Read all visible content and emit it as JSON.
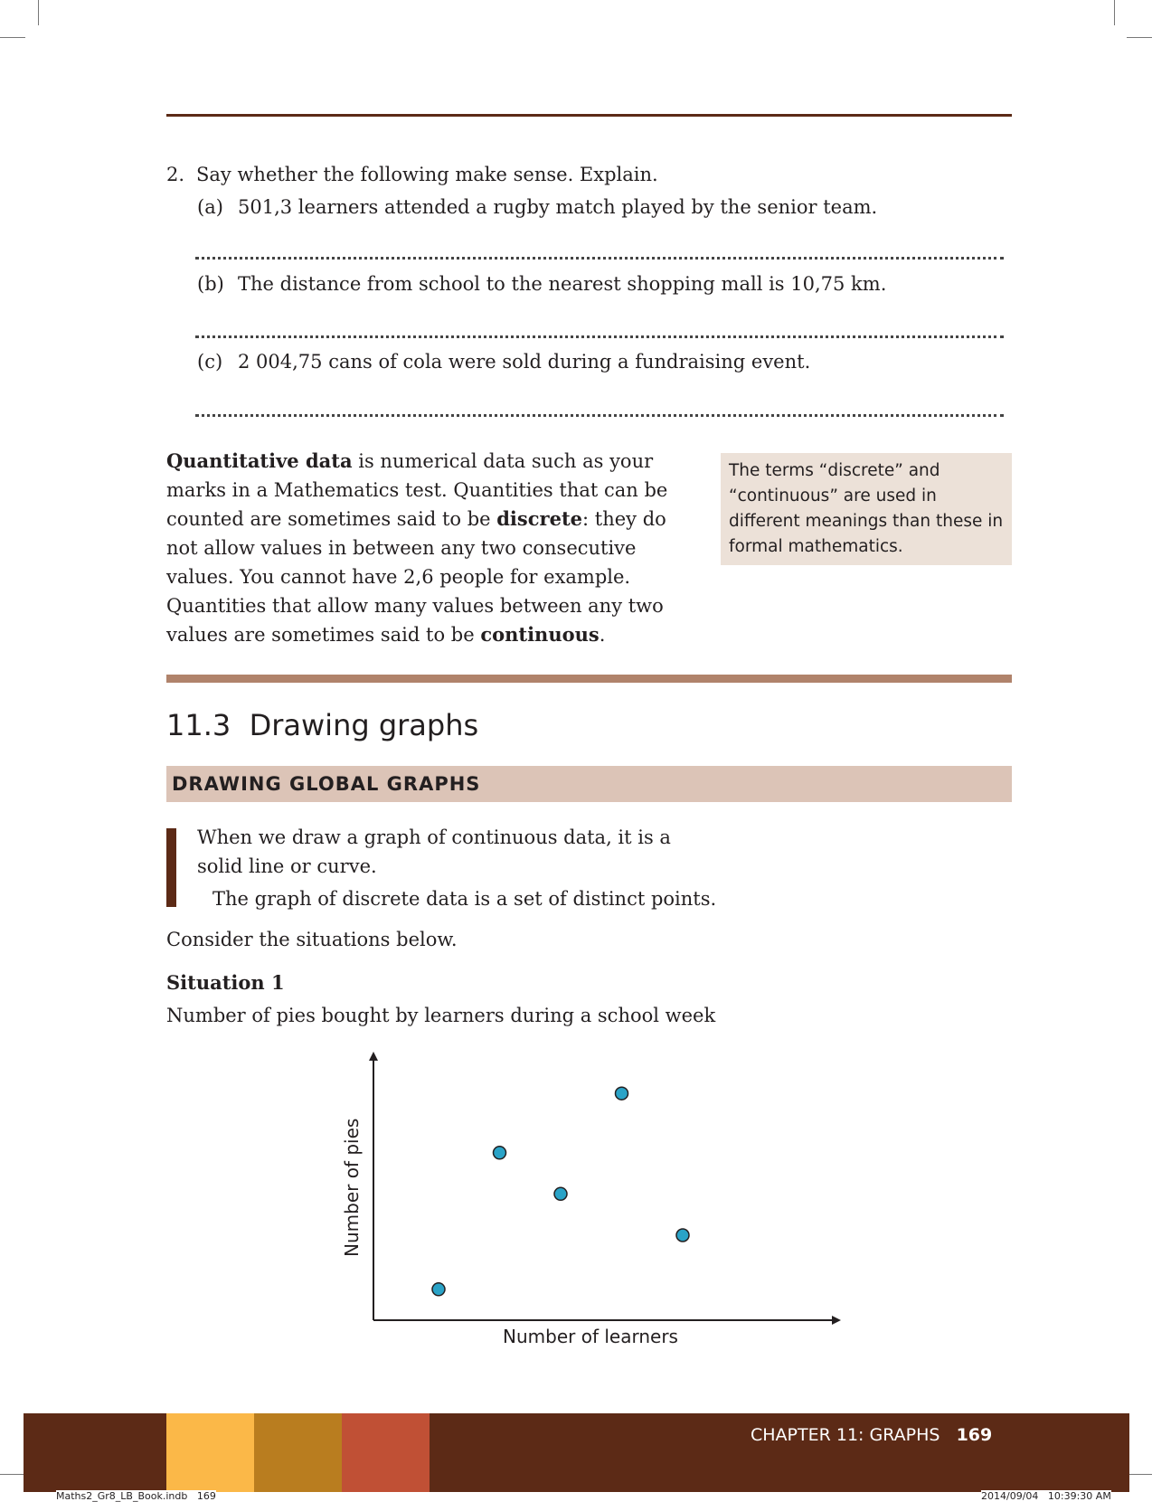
{
  "question": {
    "number": "2.",
    "prompt": "Say whether the following make sense. Explain.",
    "items": [
      {
        "label": "(a)",
        "text": "501,3 learners attended a rugby match played by the senior team."
      },
      {
        "label": "(b)",
        "text": "The distance from school to the nearest shopping mall is 10,75 km."
      },
      {
        "label": "(c)",
        "text": "2 004,75 cans of cola were sold during a fundraising event."
      }
    ]
  },
  "definition": {
    "term_quantitative": "Quantitative data",
    "t1": " is numerical data such as your marks in a Mathematics test. Quantities that can be counted are sometimes said to be ",
    "term_discrete": "discrete",
    "t2": ": they do not allow values in between any two consecutive values. You cannot have 2,6 people for example. Quantities that allow many values between any two values are sometimes said to be ",
    "term_continuous": "continuous",
    "t3": "."
  },
  "side_note": "The terms “discrete” and “continuous” are used in different meanings than these in formal mathematics.",
  "section": {
    "number": "11.3",
    "title": "Drawing graphs",
    "subheading": "DRAWING GLOBAL GRAPHS"
  },
  "callout": {
    "line1": "When we draw a graph of continuous data, it is a solid line or curve.",
    "line2": "The graph of discrete data is a set of distinct points."
  },
  "consider": "Consider the situations below.",
  "situation": {
    "title": "Situation 1",
    "description": "Number of pies bought by learners during a school week"
  },
  "chart_data": {
    "type": "scatter",
    "title": "",
    "xlabel": "Number of learners",
    "ylabel": "Number of pies",
    "xlim": [
      0,
      10
    ],
    "ylim": [
      0,
      10
    ],
    "grid": false,
    "tick_labels": false,
    "point_color": "#2aa3c7",
    "series": [
      {
        "x": [
          1,
          2,
          3,
          4,
          5
        ],
        "y": [
          1.2,
          6.5,
          4.9,
          8.8,
          3.3
        ]
      }
    ]
  },
  "footer": {
    "chapter": "CHAPTER 11: GRAPHS",
    "page": "169",
    "file": "Maths2_Gr8_LB_Book.indb   169",
    "timestamp": "2014/09/04   10:39:30 AM",
    "bar_color": "#5c2a16",
    "accent_colors": [
      "#fbb848",
      "#b97d1f",
      "#c05035"
    ]
  }
}
